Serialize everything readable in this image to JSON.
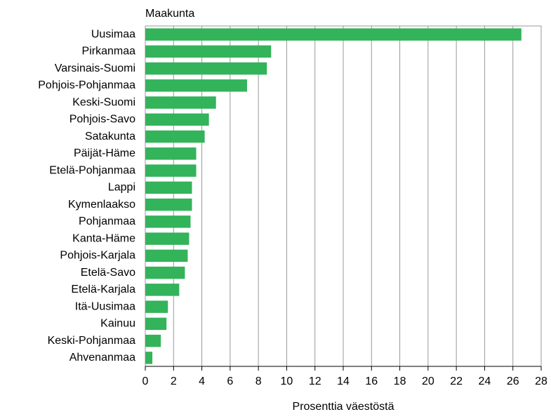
{
  "chart_data": {
    "type": "bar",
    "orientation": "horizontal",
    "y_label": "Maakunta",
    "x_label": "Prosenttia väestöstä",
    "categories": [
      "Uusimaa",
      "Pirkanmaa",
      "Varsinais-Suomi",
      "Pohjois-Pohjanmaa",
      "Keski-Suomi",
      "Pohjois-Savo",
      "Satakunta",
      "Päijät-Häme",
      "Etelä-Pohjanmaa",
      "Lappi",
      "Kymenlaakso",
      "Pohjanmaa",
      "Kanta-Häme",
      "Pohjois-Karjala",
      "Etelä-Savo",
      "Etelä-Karjala",
      "Itä-Uusimaa",
      "Kainuu",
      "Keski-Pohjanmaa",
      "Ahvenanmaa"
    ],
    "values": [
      26.6,
      8.9,
      8.6,
      7.2,
      5.0,
      4.5,
      4.2,
      3.6,
      3.6,
      3.3,
      3.3,
      3.2,
      3.1,
      3.0,
      2.8,
      2.4,
      1.6,
      1.5,
      1.1,
      0.5
    ],
    "color": "#33b35a",
    "xlim": [
      0,
      28
    ],
    "xticks": [
      0,
      2,
      4,
      6,
      8,
      10,
      12,
      14,
      16,
      18,
      20,
      22,
      24,
      26,
      28
    ],
    "grid": true
  }
}
